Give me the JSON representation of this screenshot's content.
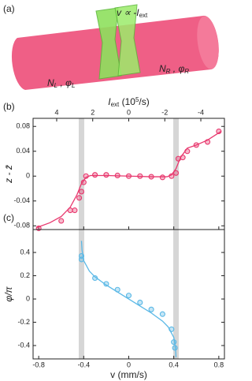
{
  "illustration": {
    "panel_label": "(a)",
    "barrier_label": [
      "v ∝ -I",
      "ext"
    ],
    "label_left": [
      "N",
      "L",
      " , φ",
      "L"
    ],
    "label_right": [
      "N",
      "R",
      " , φ",
      "R"
    ]
  },
  "shaded_v": [
    -0.42,
    0.42
  ],
  "chart_data": [
    {
      "type": "scatter",
      "panel_label": "(b)",
      "ylabel": "z - z̄",
      "color": "#e8386e",
      "x2label": [
        "I",
        "ext",
        " (10",
        "5",
        "/s)"
      ],
      "x2lim": [
        5.31,
        -5.31
      ],
      "x2ticks": [
        4,
        2,
        0,
        -2,
        -4
      ],
      "xlim": [
        -0.85,
        0.85
      ],
      "ylim": [
        -0.086,
        0.093
      ],
      "yticks": [
        -0.08,
        -0.04,
        0,
        0.04,
        0.08
      ],
      "x": [
        -0.8,
        -0.6,
        -0.52,
        -0.48,
        -0.44,
        -0.42,
        -0.4,
        -0.38,
        -0.3,
        -0.2,
        -0.1,
        0,
        0.1,
        0.2,
        0.3,
        0.38,
        0.42,
        0.44,
        0.48,
        0.52,
        0.6,
        0.7,
        0.8
      ],
      "values": [
        -0.084,
        -0.072,
        -0.055,
        -0.055,
        -0.035,
        -0.025,
        -0.01,
        0,
        0.002,
        0.002,
        0.001,
        0,
        0,
        -0.001,
        -0.002,
        0,
        0.005,
        0.028,
        0.03,
        0.04,
        0.05,
        0.055,
        0.072
      ],
      "fit": {
        "x": [
          -0.82,
          -0.7,
          -0.6,
          -0.52,
          -0.46,
          -0.42,
          -0.38,
          -0.34,
          -0.2,
          0,
          0.2,
          0.34,
          0.38,
          0.42,
          0.46,
          0.52,
          0.6,
          0.7,
          0.82
        ],
        "values": [
          -0.083,
          -0.075,
          -0.065,
          -0.05,
          -0.03,
          -0.012,
          -0.002,
          0.001,
          0.001,
          0,
          -0.001,
          -0.001,
          0.002,
          0.012,
          0.03,
          0.045,
          0.05,
          0.058,
          0.072
        ]
      }
    },
    {
      "type": "scatter",
      "panel_label": "(c)",
      "ylabel": "φ/π",
      "color": "#5ab8e6",
      "xlabel": "v (mm/s)",
      "xlim": [
        -0.85,
        0.85
      ],
      "xticks": [
        -0.8,
        -0.4,
        0,
        0.4,
        0.8
      ],
      "ylim": [
        -0.515,
        0.597
      ],
      "yticks": [
        -0.4,
        -0.2,
        0,
        0.2,
        0.4
      ],
      "x": [
        -0.42,
        -0.42,
        -0.3,
        -0.2,
        -0.1,
        0,
        0.1,
        0.2,
        0.3,
        0.38,
        0.4,
        0.41
      ],
      "values": [
        0.34,
        0.37,
        0.18,
        0.13,
        0.08,
        0.03,
        -0.03,
        -0.09,
        -0.13,
        -0.26,
        -0.37,
        -0.42
      ],
      "fit": {
        "x": [
          -0.42,
          -0.415,
          -0.4,
          -0.35,
          -0.3,
          -0.2,
          -0.1,
          0,
          0.1,
          0.2,
          0.3,
          0.35,
          0.4,
          0.415,
          0.42
        ],
        "values": [
          0.5,
          0.42,
          0.33,
          0.24,
          0.19,
          0.12,
          0.06,
          0,
          -0.06,
          -0.12,
          -0.19,
          -0.24,
          -0.33,
          -0.42,
          -0.5
        ]
      }
    }
  ]
}
